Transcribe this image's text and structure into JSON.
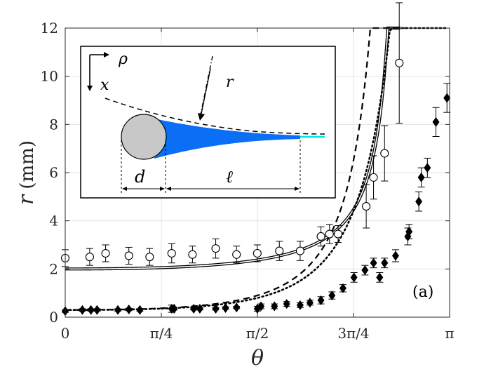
{
  "chart_data": {
    "type": "scatter",
    "xlabel": "θ",
    "ylabel_var": "r",
    "ylabel_unit": "(mm)",
    "xlim": [
      0,
      3.14159
    ],
    "ylim": [
      0,
      12
    ],
    "grid": true,
    "x_ticks": [
      {
        "value": 0,
        "label": "0"
      },
      {
        "value": 0.7854,
        "label": "π/4"
      },
      {
        "value": 1.5708,
        "label": "π/2"
      },
      {
        "value": 2.3562,
        "label": "3π/4"
      },
      {
        "value": 3.14159,
        "label": "π"
      }
    ],
    "y_ticks": [
      {
        "value": 0,
        "label": "0"
      },
      {
        "value": 2,
        "label": "2"
      },
      {
        "value": 4,
        "label": "4"
      },
      {
        "value": 6,
        "label": "6"
      },
      {
        "value": 8,
        "label": "8"
      },
      {
        "value": 10,
        "label": "10"
      },
      {
        "value": 12,
        "label": "12"
      }
    ],
    "panel_label": "(a)",
    "series": [
      {
        "marker": "open-circle",
        "points": [
          {
            "x": 0.0,
            "y": 2.45,
            "err": 0.35
          },
          {
            "x": 0.2,
            "y": 2.5,
            "err": 0.35
          },
          {
            "x": 0.33,
            "y": 2.65,
            "err": 0.35
          },
          {
            "x": 0.52,
            "y": 2.55,
            "err": 0.35
          },
          {
            "x": 0.69,
            "y": 2.5,
            "err": 0.35
          },
          {
            "x": 0.87,
            "y": 2.65,
            "err": 0.4
          },
          {
            "x": 1.04,
            "y": 2.6,
            "err": 0.35
          },
          {
            "x": 1.23,
            "y": 2.85,
            "err": 0.4
          },
          {
            "x": 1.4,
            "y": 2.6,
            "err": 0.35
          },
          {
            "x": 1.57,
            "y": 2.65,
            "err": 0.35
          },
          {
            "x": 1.75,
            "y": 2.75,
            "err": 0.4
          },
          {
            "x": 1.92,
            "y": 2.75,
            "err": 0.4
          },
          {
            "x": 2.09,
            "y": 3.35,
            "err": 0.4
          },
          {
            "x": 2.16,
            "y": 3.45,
            "err": 0.4
          },
          {
            "x": 2.23,
            "y": 3.45,
            "err": 0.35
          },
          {
            "x": 2.46,
            "y": 4.6,
            "err": 0.9
          },
          {
            "x": 2.52,
            "y": 5.8,
            "err": 0.9
          },
          {
            "x": 2.61,
            "y": 6.8,
            "err": 1.15
          },
          {
            "x": 2.73,
            "y": 10.55,
            "err": 2.5
          }
        ]
      },
      {
        "marker": "filled-diamond",
        "points": [
          {
            "x": 0.0,
            "y": 0.25,
            "err": 0.05
          },
          {
            "x": 0.14,
            "y": 0.3,
            "err": 0.05
          },
          {
            "x": 0.21,
            "y": 0.3,
            "err": 0.05
          },
          {
            "x": 0.26,
            "y": 0.3,
            "err": 0.05
          },
          {
            "x": 0.43,
            "y": 0.3,
            "err": 0.05
          },
          {
            "x": 0.52,
            "y": 0.32,
            "err": 0.05
          },
          {
            "x": 0.61,
            "y": 0.3,
            "err": 0.05
          },
          {
            "x": 0.87,
            "y": 0.35,
            "err": 0.15
          },
          {
            "x": 0.89,
            "y": 0.35,
            "err": 0.05
          },
          {
            "x": 1.05,
            "y": 0.35,
            "err": 0.05
          },
          {
            "x": 1.1,
            "y": 0.35,
            "err": 0.05
          },
          {
            "x": 1.23,
            "y": 0.35,
            "err": 0.05
          },
          {
            "x": 1.31,
            "y": 0.38,
            "err": 0.05
          },
          {
            "x": 1.4,
            "y": 0.4,
            "err": 0.05
          },
          {
            "x": 1.57,
            "y": 0.35,
            "err": 0.1
          },
          {
            "x": 1.6,
            "y": 0.45,
            "err": 0.1
          },
          {
            "x": 1.71,
            "y": 0.45,
            "err": 0.1
          },
          {
            "x": 1.81,
            "y": 0.55,
            "err": 0.1
          },
          {
            "x": 1.92,
            "y": 0.5,
            "err": 0.1
          },
          {
            "x": 2.0,
            "y": 0.6,
            "err": 0.1
          },
          {
            "x": 2.09,
            "y": 0.7,
            "err": 0.15
          },
          {
            "x": 2.18,
            "y": 0.9,
            "err": 0.15
          },
          {
            "x": 2.27,
            "y": 1.2,
            "err": 0.15
          },
          {
            "x": 2.36,
            "y": 1.65,
            "err": 0.2
          },
          {
            "x": 2.45,
            "y": 1.95,
            "err": 0.2
          },
          {
            "x": 2.52,
            "y": 2.25,
            "err": 0.2
          },
          {
            "x": 2.57,
            "y": 1.65,
            "err": 0.2
          },
          {
            "x": 2.61,
            "y": 2.25,
            "err": 0.2
          },
          {
            "x": 2.7,
            "y": 2.55,
            "err": 0.25
          },
          {
            "x": 2.8,
            "y": 3.35,
            "err": 0.35
          },
          {
            "x": 2.81,
            "y": 3.55,
            "err": 0.3
          },
          {
            "x": 2.89,
            "y": 4.8,
            "err": 0.4
          },
          {
            "x": 2.91,
            "y": 5.8,
            "err": 0.4
          },
          {
            "x": 2.96,
            "y": 6.2,
            "err": 0.4
          },
          {
            "x": 3.03,
            "y": 8.1,
            "err": 0.6
          },
          {
            "x": 3.12,
            "y": 9.1,
            "err": 0.6
          }
        ]
      }
    ],
    "curves": [
      {
        "style": "double-solid",
        "r0": 2.0,
        "k": 0.0,
        "xmax": 2.74
      },
      {
        "style": "dashed",
        "r0": 0.3,
        "k": 0.0,
        "xmax": 2.79
      },
      {
        "style": "dotted",
        "r0": 0.3,
        "k": 0.0,
        "xmax": 3.12
      }
    ]
  },
  "inset": {
    "label_rho": "ρ",
    "label_x": "x",
    "label_r": "r",
    "label_d": "d",
    "label_ell": "ℓ",
    "colors": {
      "fiber": "#0a6ff5",
      "tip": "#00e5e5",
      "cylinder": "#c8c8c8"
    }
  }
}
